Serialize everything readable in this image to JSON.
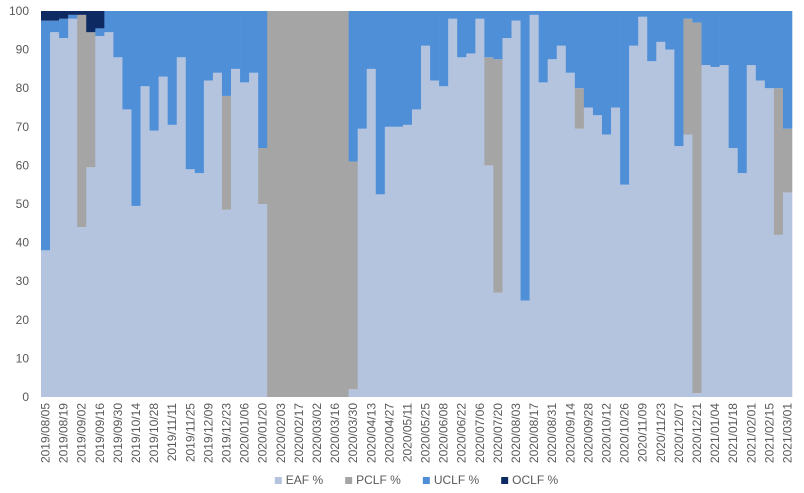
{
  "chart_data": {
    "type": "stacked_bar",
    "categories": [
      "2019/08/05",
      null,
      "2019/08/19",
      null,
      "2019/09/02",
      null,
      "2019/09/16",
      null,
      "2019/09/30",
      null,
      "2019/10/14",
      null,
      "2019/10/28",
      null,
      "2019/11/11",
      null,
      "2019/11/25",
      null,
      "2019/12/09",
      null,
      "2019/12/23",
      null,
      "2020/01/06",
      null,
      "2020/01/20",
      null,
      "2020/02/03",
      null,
      "2020/02/17",
      null,
      "2020/03/02",
      null,
      "2020/03/16",
      null,
      "2020/03/30",
      null,
      "2020/04/13",
      null,
      "2020/04/27",
      null,
      "2020/05/11",
      null,
      "2020/05/25",
      null,
      "2020/06/08",
      null,
      "2020/06/22",
      null,
      "2020/07/06",
      null,
      "2020/07/20",
      null,
      "2020/08/03",
      null,
      "2020/08/17",
      null,
      "2020/08/31",
      null,
      "2020/09/14",
      null,
      "2020/09/28",
      null,
      "2020/10/12",
      null,
      "2020/10/26",
      null,
      "2020/11/09",
      null,
      "2020/11/23",
      null,
      "2020/12/07",
      null,
      "2020/12/21",
      null,
      "2021/01/04",
      null,
      "2021/01/18",
      null,
      "2021/02/01",
      null,
      "2021/02/15",
      null,
      "2021/03/01"
    ],
    "series": [
      {
        "name": "EAF %",
        "color": "#b4c3de",
        "values": [
          38,
          94.5,
          93,
          98,
          44,
          59.5,
          93.5,
          94.5,
          88,
          74.5,
          49.5,
          80.5,
          69,
          83,
          70.5,
          88,
          59,
          58,
          82,
          84,
          48.5,
          85,
          81.5,
          84,
          50,
          0,
          0,
          0,
          0,
          0,
          0,
          0,
          0,
          0,
          2,
          69.5,
          85,
          52.5,
          70,
          70,
          70.5,
          74.5,
          91,
          82,
          80.5,
          98,
          88,
          89,
          98,
          60,
          27,
          93,
          97.5,
          25,
          99,
          81.5,
          87.5,
          91,
          84,
          69.5,
          75,
          73,
          68,
          75,
          55,
          91,
          98.5,
          87,
          92,
          90,
          65,
          68,
          1,
          86,
          85.5,
          86,
          64.5,
          58,
          86,
          82,
          80,
          42,
          53
        ]
      },
      {
        "name": "PCLF %",
        "color": "#a5a5a5",
        "values": [
          0,
          0,
          0,
          0,
          55,
          35,
          0,
          0,
          0,
          0,
          0,
          0,
          0,
          0,
          0,
          0,
          0,
          0,
          0,
          0,
          29.5,
          0,
          0,
          0,
          14.5,
          100,
          100,
          100,
          100,
          100,
          100,
          100,
          100,
          100,
          59,
          0,
          0,
          0,
          0,
          0,
          0,
          0,
          0,
          0,
          0,
          0,
          0,
          0,
          0,
          28,
          60.5,
          0,
          0,
          0,
          0,
          0,
          0,
          0,
          0,
          10.5,
          0,
          0,
          0,
          0,
          0,
          0,
          0,
          0,
          0,
          0,
          0,
          30,
          96,
          0,
          0,
          0,
          0,
          0,
          0,
          0,
          0,
          38,
          16.5
        ]
      },
      {
        "name": "UCLF %",
        "color": "#4f8fd8",
        "values": [
          59.5,
          3,
          5,
          1,
          0,
          0,
          2,
          5.5,
          12,
          25.5,
          50.5,
          19.5,
          31,
          17,
          29.5,
          12,
          41,
          42,
          18,
          16,
          22,
          15,
          18.5,
          16,
          35.5,
          0,
          0,
          0,
          0,
          0,
          0,
          0,
          0,
          0,
          39,
          30.5,
          15,
          47.5,
          30,
          30,
          29.5,
          25.5,
          9,
          18,
          19.5,
          2,
          12,
          11,
          2,
          12,
          12.5,
          7,
          2.5,
          75,
          1,
          18.5,
          12.5,
          9,
          16,
          20,
          25,
          27,
          32,
          25,
          45,
          9,
          1.5,
          13,
          8,
          10,
          35,
          2,
          3,
          14,
          14.5,
          14,
          35.5,
          42,
          14,
          18,
          20,
          20,
          30.5
        ]
      },
      {
        "name": "OCLF %",
        "color": "#0d2a62",
        "values": [
          2.5,
          2.5,
          2,
          1,
          1,
          5.5,
          4.5,
          0,
          0,
          0,
          0,
          0,
          0,
          0,
          0,
          0,
          0,
          0,
          0,
          0,
          0,
          0,
          0,
          0,
          0,
          0,
          0,
          0,
          0,
          0,
          0,
          0,
          0,
          0,
          0,
          0,
          0,
          0,
          0,
          0,
          0,
          0,
          0,
          0,
          0,
          0,
          0,
          0,
          0,
          0,
          0,
          0,
          0,
          0,
          0,
          0,
          0,
          0,
          0,
          0,
          0,
          0,
          0,
          0,
          0,
          0,
          0,
          0,
          0,
          0,
          0,
          0,
          0,
          0,
          0,
          0,
          0,
          0,
          0,
          0,
          0,
          0,
          0
        ]
      }
    ],
    "ylim": [
      0,
      100
    ],
    "yticks": [
      0,
      10,
      20,
      30,
      40,
      50,
      60,
      70,
      80,
      90,
      100
    ],
    "grid": false,
    "legend": "bottom"
  }
}
